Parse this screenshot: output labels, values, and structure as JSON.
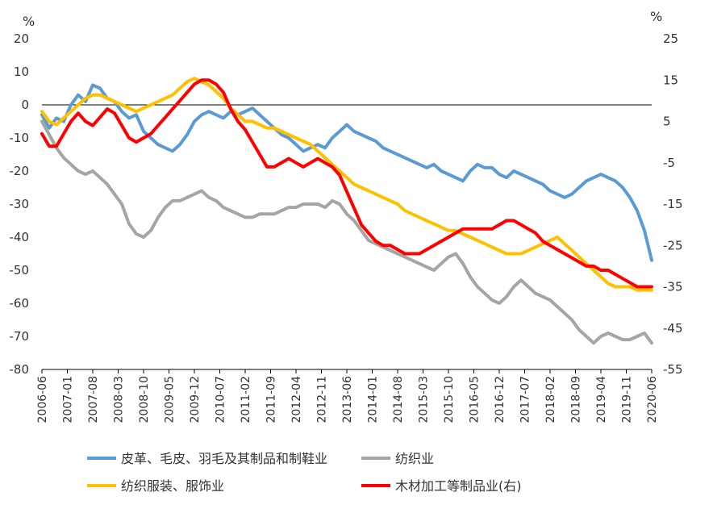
{
  "chart_data": {
    "type": "line",
    "left_unit": "%",
    "right_unit": "%",
    "ylim_left": [
      -80,
      20
    ],
    "ylim_right": [
      -55,
      25
    ],
    "left_ticks": [
      20,
      10,
      0,
      -10,
      -20,
      -30,
      -40,
      -50,
      -60,
      -70,
      -80
    ],
    "right_ticks": [
      25,
      15,
      5,
      -5,
      -15,
      -25,
      -35,
      -45,
      -55
    ],
    "x_tick_labels": [
      "2006-06",
      "2007-01",
      "2007-08",
      "2008-03",
      "2008-10",
      "2009-05",
      "2009-12",
      "2010-07",
      "2011-02",
      "2011-09",
      "2012-04",
      "2012-11",
      "2013-06",
      "2014-01",
      "2014-08",
      "2015-03",
      "2015-10",
      "2016-05",
      "2016-12",
      "2017-07",
      "2018-02",
      "2018-09",
      "2019-04",
      "2019-11",
      "2020-06"
    ],
    "grid": false,
    "legend_position": "bottom",
    "series": [
      {
        "name": "皮革、毛皮、羽毛及其制品和制鞋业",
        "color": "#5B9BD5",
        "axis": "left",
        "x_index": [
          0,
          2,
          4,
          6,
          8,
          10,
          12,
          14,
          16,
          18,
          20,
          22,
          24,
          26,
          28,
          30,
          32,
          34,
          36,
          38,
          40,
          42,
          44,
          46,
          48,
          50,
          52,
          54,
          56,
          58,
          60,
          62,
          64,
          66,
          68,
          70,
          72,
          74,
          76,
          78,
          80,
          82,
          84,
          86,
          88,
          90,
          92,
          94,
          96,
          98,
          100,
          102,
          104,
          106,
          108,
          110,
          112,
          114,
          116,
          118,
          120,
          122,
          124,
          126,
          128,
          130,
          132,
          134,
          136,
          138,
          140,
          142,
          144,
          146,
          148,
          150,
          152,
          154,
          156,
          158,
          160,
          162,
          164,
          166,
          168
        ],
        "values": [
          -3,
          -7,
          -4,
          -5,
          0,
          3,
          1,
          6,
          5,
          2,
          1,
          -2,
          -4,
          -3,
          -8,
          -10,
          -12,
          -13,
          -14,
          -12,
          -9,
          -5,
          -3,
          -2,
          -3,
          -4,
          -2,
          -3,
          -2,
          -1,
          -3,
          -5,
          -7,
          -9,
          -10,
          -12,
          -14,
          -13,
          -12,
          -13,
          -10,
          -8,
          -6,
          -8,
          -9,
          -10,
          -11,
          -13,
          -14,
          -15,
          -16,
          -17,
          -18,
          -19,
          -18,
          -20,
          -21,
          -22,
          -23,
          -20,
          -18,
          -19,
          -19,
          -21,
          -22,
          -20,
          -21,
          -22,
          -23,
          -24,
          -26,
          -27,
          -28,
          -27,
          -25,
          -23,
          -22,
          -21,
          -22,
          -23,
          -25,
          -28,
          -32,
          -38,
          -47
        ]
      },
      {
        "name": "纺织业",
        "color": "#A5A5A5",
        "axis": "left",
        "x_index": [
          0,
          2,
          4,
          6,
          8,
          10,
          12,
          14,
          16,
          18,
          20,
          22,
          24,
          26,
          28,
          30,
          32,
          34,
          36,
          38,
          40,
          42,
          44,
          46,
          48,
          50,
          52,
          54,
          56,
          58,
          60,
          62,
          64,
          66,
          68,
          70,
          72,
          74,
          76,
          78,
          80,
          82,
          84,
          86,
          88,
          90,
          92,
          94,
          96,
          98,
          100,
          102,
          104,
          106,
          108,
          110,
          112,
          114,
          116,
          118,
          120,
          122,
          124,
          126,
          128,
          130,
          132,
          134,
          136,
          138,
          140,
          142,
          144,
          146,
          148,
          150,
          152,
          154,
          156,
          158,
          160,
          162,
          164,
          166,
          168
        ],
        "values": [
          -5,
          -9,
          -13,
          -16,
          -18,
          -20,
          -21,
          -20,
          -22,
          -24,
          -27,
          -30,
          -36,
          -39,
          -40,
          -38,
          -34,
          -31,
          -29,
          -29,
          -28,
          -27,
          -26,
          -28,
          -29,
          -31,
          -32,
          -33,
          -34,
          -34,
          -33,
          -33,
          -33,
          -32,
          -31,
          -31,
          -30,
          -30,
          -30,
          -31,
          -29,
          -30,
          -33,
          -35,
          -38,
          -41,
          -42,
          -43,
          -44,
          -45,
          -46,
          -47,
          -48,
          -49,
          -50,
          -48,
          -46,
          -45,
          -48,
          -52,
          -55,
          -57,
          -59,
          -60,
          -58,
          -55,
          -53,
          -55,
          -57,
          -58,
          -59,
          -61,
          -63,
          -65,
          -68,
          -70,
          -72,
          -70,
          -69,
          -70,
          -71,
          -71,
          -70,
          -69,
          -72
        ]
      },
      {
        "name": "纺织服装、服饰业",
        "color": "#FFC000",
        "axis": "left",
        "x_index": [
          0,
          2,
          4,
          6,
          8,
          10,
          12,
          14,
          16,
          18,
          20,
          22,
          24,
          26,
          28,
          30,
          32,
          34,
          36,
          38,
          40,
          42,
          44,
          46,
          48,
          50,
          52,
          54,
          56,
          58,
          60,
          62,
          64,
          66,
          68,
          70,
          72,
          74,
          76,
          78,
          80,
          82,
          84,
          86,
          88,
          90,
          92,
          94,
          96,
          98,
          100,
          102,
          104,
          106,
          108,
          110,
          112,
          114,
          116,
          118,
          120,
          122,
          124,
          126,
          128,
          130,
          132,
          134,
          136,
          138,
          140,
          142,
          144,
          146,
          148,
          150,
          152,
          154,
          156,
          158,
          160,
          162,
          164,
          166,
          168
        ],
        "values": [
          -2,
          -5,
          -6,
          -4,
          -2,
          0,
          2,
          3,
          3,
          2,
          1,
          0,
          -1,
          -2,
          -1,
          0,
          1,
          2,
          3,
          5,
          7,
          8,
          7,
          6,
          4,
          2,
          -1,
          -3,
          -5,
          -5,
          -6,
          -7,
          -7,
          -8,
          -9,
          -10,
          -11,
          -12,
          -14,
          -16,
          -18,
          -20,
          -22,
          -24,
          -25,
          -26,
          -27,
          -28,
          -29,
          -30,
          -32,
          -33,
          -34,
          -35,
          -36,
          -37,
          -38,
          -38,
          -39,
          -40,
          -41,
          -42,
          -43,
          -44,
          -45,
          -45,
          -45,
          -44,
          -43,
          -42,
          -41,
          -40,
          -42,
          -44,
          -46,
          -48,
          -50,
          -52,
          -54,
          -55,
          -55,
          -55,
          -56,
          -56,
          -56
        ]
      },
      {
        "name": "木材加工等制品业(右)",
        "color": "#FF0000",
        "axis": "right",
        "x_index": [
          0,
          2,
          4,
          6,
          8,
          10,
          12,
          14,
          16,
          18,
          20,
          22,
          24,
          26,
          28,
          30,
          32,
          34,
          36,
          38,
          40,
          42,
          44,
          46,
          48,
          50,
          52,
          54,
          56,
          58,
          60,
          62,
          64,
          66,
          68,
          70,
          72,
          74,
          76,
          78,
          80,
          82,
          84,
          86,
          88,
          90,
          92,
          94,
          96,
          98,
          100,
          102,
          104,
          106,
          108,
          110,
          112,
          114,
          116,
          118,
          120,
          122,
          124,
          126,
          128,
          130,
          132,
          134,
          136,
          138,
          140,
          142,
          144,
          146,
          148,
          150,
          152,
          154,
          156,
          158,
          160,
          162,
          164,
          166,
          168
        ],
        "values": [
          2,
          -1,
          -1,
          2,
          5,
          7,
          5,
          4,
          6,
          8,
          7,
          4,
          1,
          0,
          1,
          2,
          4,
          6,
          8,
          10,
          12,
          14,
          15,
          15,
          14,
          12,
          8,
          5,
          3,
          0,
          -3,
          -6,
          -6,
          -5,
          -4,
          -5,
          -6,
          -5,
          -4,
          -5,
          -6,
          -8,
          -12,
          -16,
          -20,
          -22,
          -24,
          -25,
          -25,
          -26,
          -27,
          -27,
          -27,
          -26,
          -25,
          -24,
          -23,
          -22,
          -21,
          -21,
          -21,
          -21,
          -21,
          -20,
          -19,
          -19,
          -20,
          -21,
          -22,
          -24,
          -25,
          -26,
          -27,
          -28,
          -29,
          -30,
          -30,
          -31,
          -31,
          -32,
          -33,
          -34,
          -35,
          -35,
          -35
        ]
      }
    ]
  }
}
